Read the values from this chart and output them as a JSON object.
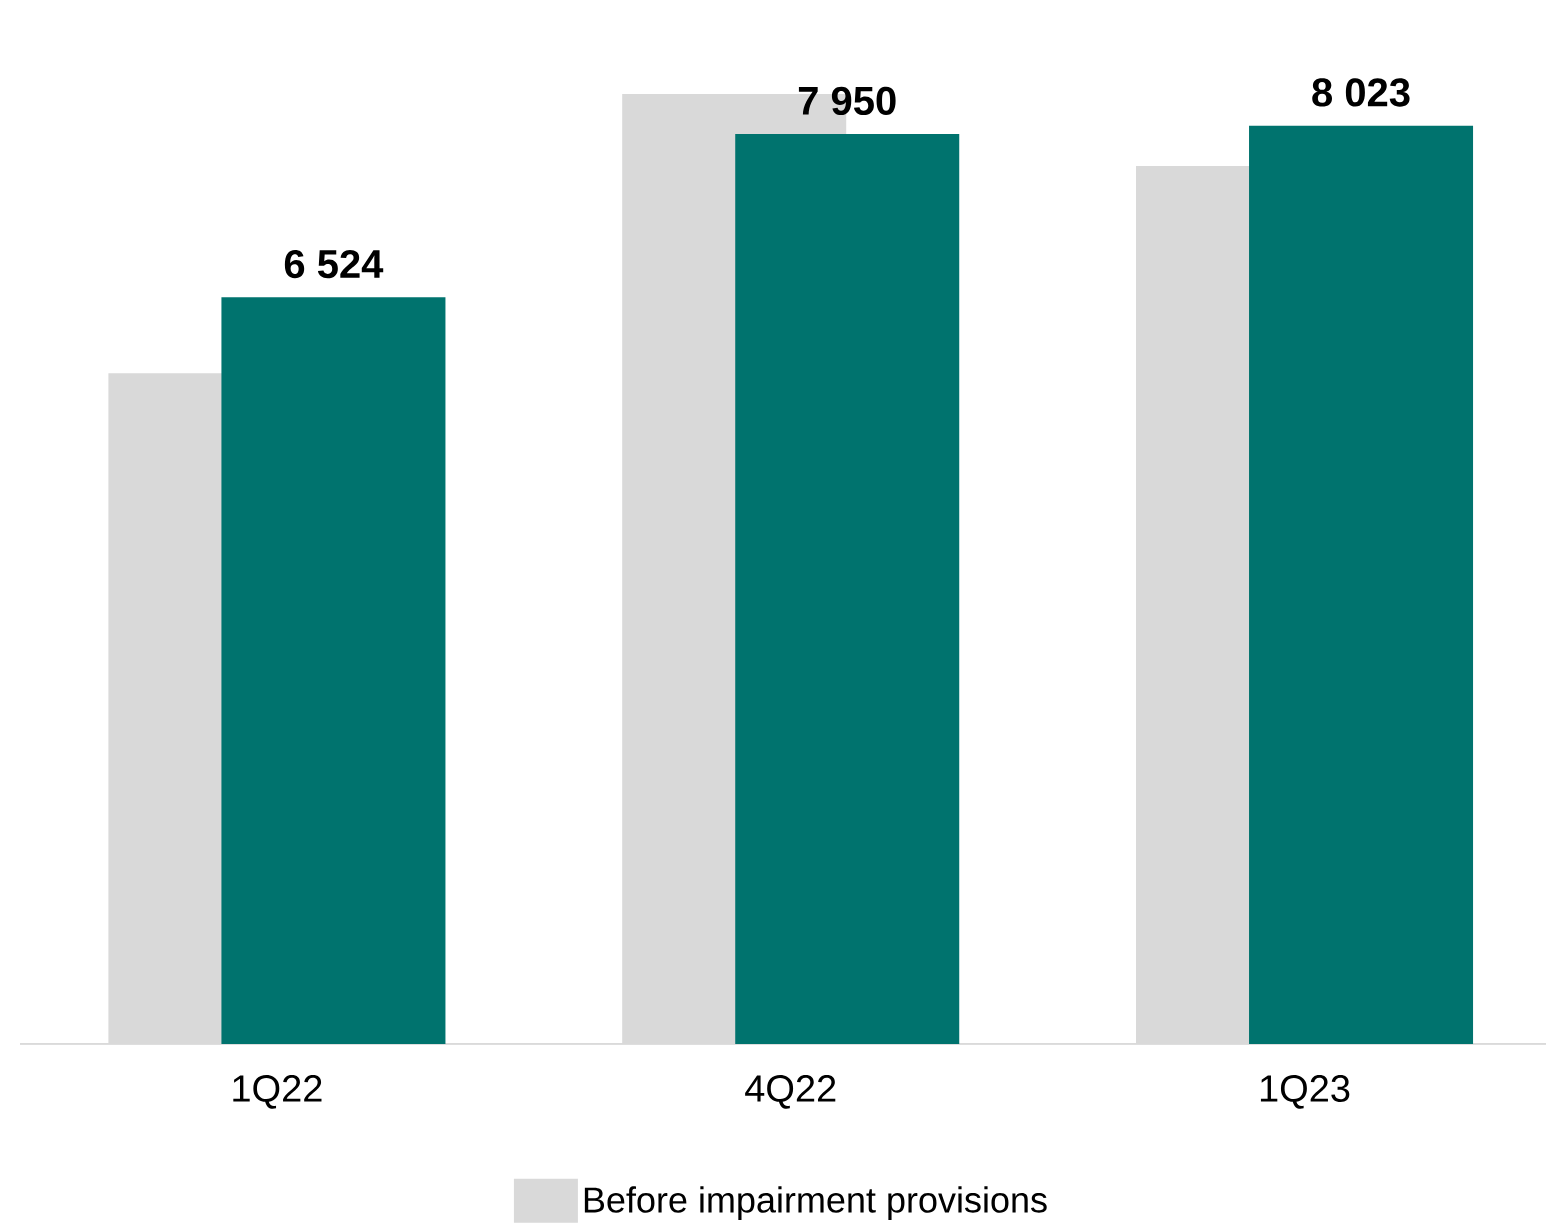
{
  "chart_data": {
    "type": "bar",
    "categories": [
      "1Q22",
      "4Q22",
      "1Q23"
    ],
    "series": [
      {
        "name": "Before impairment provisions",
        "color": "#d9d9d9",
        "values": [
          5860,
          8300,
          7670
        ]
      },
      {
        "color": "#00736e",
        "values": [
          6524,
          7950,
          8023
        ],
        "value_labels": [
          "6 524",
          "7 950",
          "8 023"
        ]
      }
    ],
    "legend": "bottom"
  }
}
